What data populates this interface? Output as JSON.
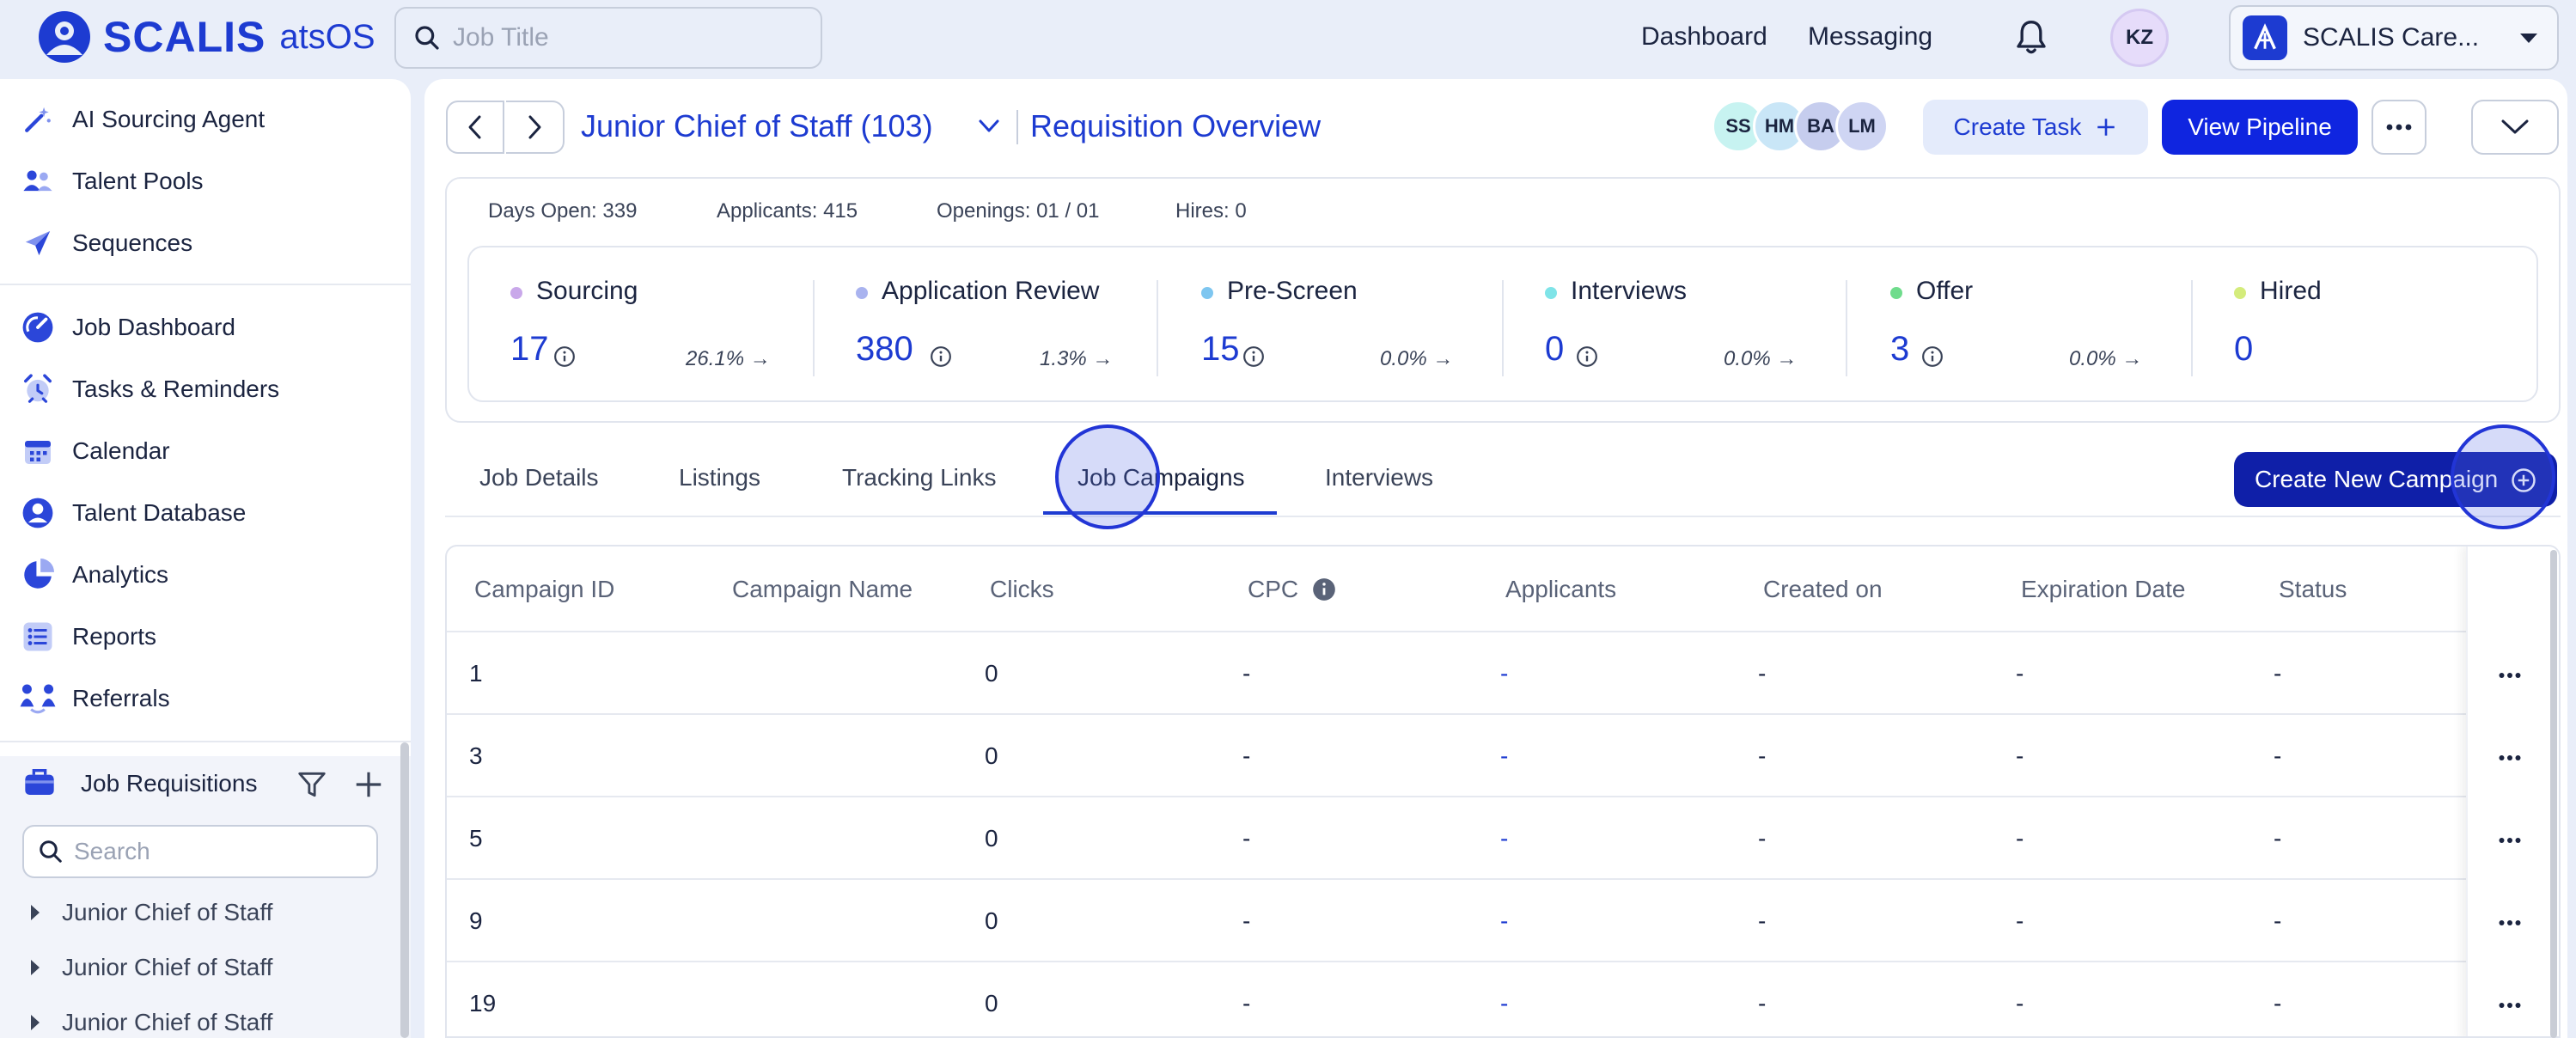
{
  "header": {
    "brand": "SCALIS",
    "brand_sub": "atsOS",
    "search_placeholder": "Job Title",
    "nav": [
      "Dashboard",
      "Messaging"
    ],
    "user_initials": "KZ",
    "org_name": "SCALIS Care..."
  },
  "sidebar": {
    "items_top": [
      {
        "label": "AI Sourcing Agent",
        "icon": "magic-wand-icon"
      },
      {
        "label": "Talent Pools",
        "icon": "users-icon"
      },
      {
        "label": "Sequences",
        "icon": "paper-plane-icon"
      }
    ],
    "items_main": [
      {
        "label": "Job Dashboard",
        "icon": "gauge-icon"
      },
      {
        "label": "Tasks & Reminders",
        "icon": "alarm-clock-icon"
      },
      {
        "label": "Calendar",
        "icon": "calendar-icon"
      },
      {
        "label": "Talent Database",
        "icon": "user-circle-icon"
      },
      {
        "label": "Analytics",
        "icon": "pie-chart-icon"
      },
      {
        "label": "Reports",
        "icon": "list-icon"
      },
      {
        "label": "Referrals",
        "icon": "referral-icon"
      }
    ],
    "requisitions": {
      "title": "Job Requisitions",
      "search_placeholder": "Search",
      "items": [
        "Junior Chief of Staff",
        "Junior Chief of Staff",
        "Junior Chief of Staff"
      ]
    }
  },
  "job": {
    "title": "Junior Chief of Staff (103)",
    "page": "Requisition Overview",
    "team": [
      "SS",
      "HM",
      "BA",
      "LM"
    ],
    "create_task": "Create Task",
    "view_pipeline": "View Pipeline"
  },
  "kpis": {
    "days_open": "Days Open: 339",
    "applicants": "Applicants: 415",
    "openings": "Openings: 01 / 01",
    "hires": "Hires: 0"
  },
  "stages": [
    {
      "name": "Sourcing",
      "count": "17",
      "rate": "26.1% →",
      "color": "#c9a8ea"
    },
    {
      "name": "Application Review",
      "count": "380",
      "rate": "1.3% →",
      "color": "#a9b3ef"
    },
    {
      "name": "Pre-Screen",
      "count": "15",
      "rate": "0.0% →",
      "color": "#7ec6f0"
    },
    {
      "name": "Interviews",
      "count": "0",
      "rate": "0.0% →",
      "color": "#7fe4e8"
    },
    {
      "name": "Offer",
      "count": "3",
      "rate": "0.0% →",
      "color": "#6fdc8c"
    },
    {
      "name": "Hired",
      "count": "0",
      "rate": "",
      "color": "#d4ec7c"
    }
  ],
  "tabs": [
    "Job Details",
    "Listings",
    "Tracking Links",
    "Job Campaigns",
    "Interviews"
  ],
  "active_tab": "Job Campaigns",
  "create_campaign": "Create New Campaign",
  "table": {
    "columns": [
      "Campaign ID",
      "Campaign Name",
      "Clicks",
      "CPC",
      "Applicants",
      "Created on",
      "Expiration Date",
      "Status"
    ],
    "rows": [
      {
        "id": "1",
        "name": "",
        "clicks": "0",
        "cpc": "-",
        "applicants": "-",
        "created": "-",
        "expiration": "-",
        "status": "-"
      },
      {
        "id": "3",
        "name": "",
        "clicks": "0",
        "cpc": "-",
        "applicants": "-",
        "created": "-",
        "expiration": "-",
        "status": "-"
      },
      {
        "id": "5",
        "name": "",
        "clicks": "0",
        "cpc": "-",
        "applicants": "-",
        "created": "-",
        "expiration": "-",
        "status": "-"
      },
      {
        "id": "9",
        "name": "",
        "clicks": "0",
        "cpc": "-",
        "applicants": "-",
        "created": "-",
        "expiration": "-",
        "status": "-"
      },
      {
        "id": "19",
        "name": "",
        "clicks": "0",
        "cpc": "-",
        "applicants": "-",
        "created": "-",
        "expiration": "-",
        "status": "-"
      }
    ]
  },
  "colors": {
    "accent": "#1d3bd1",
    "primary_button": "#0f25e0",
    "campaign_button": "#0f1fa8"
  }
}
